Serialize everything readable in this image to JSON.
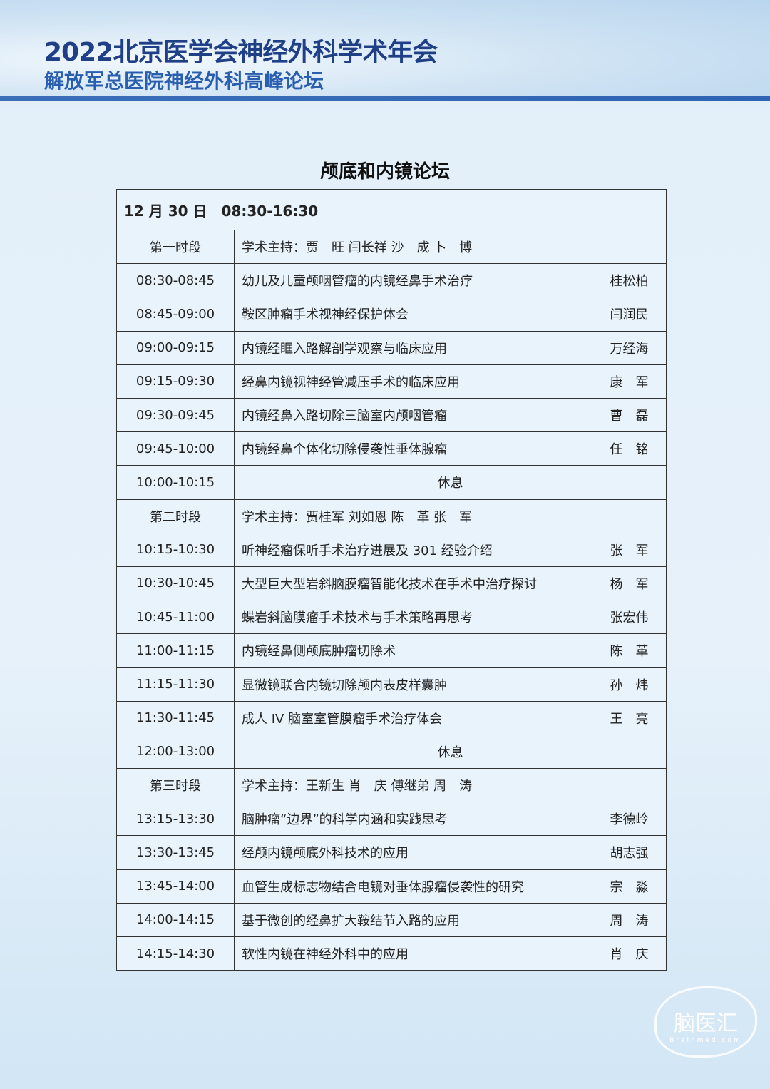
{
  "header": {
    "title": "2022北京医学会神经外科学术年会",
    "subtitle": "解放军总医院神经外科高峰论坛"
  },
  "page_title": "颅底和内镜论坛",
  "date_row": "12 月 30 日　08:30-16:30",
  "rows": [
    {
      "type": "section",
      "time": "第一时段",
      "text": "学术主持：贾　旺 闫长祥 沙　成 卜　博"
    },
    {
      "time": "08:30-08:45",
      "topic": "幼儿及儿童颅咽管瘤的内镜经鼻手术治疗",
      "speaker": "桂松柏"
    },
    {
      "time": "08:45-09:00",
      "topic": "鞍区肿瘤手术视神经保护体会",
      "speaker": "闫润民"
    },
    {
      "time": "09:00-09:15",
      "topic": "内镜经眶入路解剖学观察与临床应用",
      "speaker": "万经海"
    },
    {
      "time": "09:15-09:30",
      "topic": "经鼻内镜视神经管减压手术的临床应用",
      "speaker": "康　军"
    },
    {
      "time": "09:30-09:45",
      "topic": "内镜经鼻入路切除三脑室内颅咽管瘤",
      "speaker": "曹　磊"
    },
    {
      "time": "09:45-10:00",
      "topic": "内镜经鼻个体化切除侵袭性垂体腺瘤",
      "speaker": "任　铭"
    },
    {
      "type": "break",
      "time": "10:00-10:15",
      "text": "休息"
    },
    {
      "type": "section",
      "time": "第二时段",
      "text": "学术主持：贾桂军 刘如恩 陈　革 张　军"
    },
    {
      "time": "10:15-10:30",
      "topic": "听神经瘤保听手术治疗进展及 301 经验介绍",
      "speaker": "张　军"
    },
    {
      "time": "10:30-10:45",
      "topic": "大型巨大型岩斜脑膜瘤智能化技术在手术中治疗探讨",
      "speaker": "杨　军"
    },
    {
      "time": "10:45-11:00",
      "topic": "蝶岩斜脑膜瘤手术技术与手术策略再思考",
      "speaker": "张宏伟"
    },
    {
      "time": "11:00-11:15",
      "topic": "内镜经鼻侧颅底肿瘤切除术",
      "speaker": "陈　革"
    },
    {
      "time": "11:15-11:30",
      "topic": "显微镜联合内镜切除颅内表皮样囊肿",
      "speaker": "孙　炜"
    },
    {
      "time": "11:30-11:45",
      "topic": "成人 IV 脑室室管膜瘤手术治疗体会",
      "speaker": "王　亮"
    },
    {
      "type": "break",
      "time": "12:00-13:00",
      "text": "休息"
    },
    {
      "type": "section",
      "time": "第三时段",
      "text": "学术主持：王新生 肖　庆 傅继弟 周　涛"
    },
    {
      "time": "13:15-13:30",
      "topic": "脑肿瘤“边界”的科学内涵和实践思考",
      "speaker": "李德岭"
    },
    {
      "time": "13:30-13:45",
      "topic": "经颅内镜颅底外科技术的应用",
      "speaker": "胡志强"
    },
    {
      "time": "13:45-14:00",
      "topic": "血管生成标志物结合电镜对垂体腺瘤侵袭性的研究",
      "speaker": "宗　淼"
    },
    {
      "time": "14:00-14:15",
      "topic": "基于微创的经鼻扩大鞍结节入路的应用",
      "speaker": "周　涛"
    },
    {
      "time": "14:15-14:30",
      "topic": "软性内镜在神经外科中的应用",
      "speaker": "肖　庆"
    }
  ],
  "watermark": {
    "text": "脑医汇",
    "sub": "Brainmed.com"
  }
}
